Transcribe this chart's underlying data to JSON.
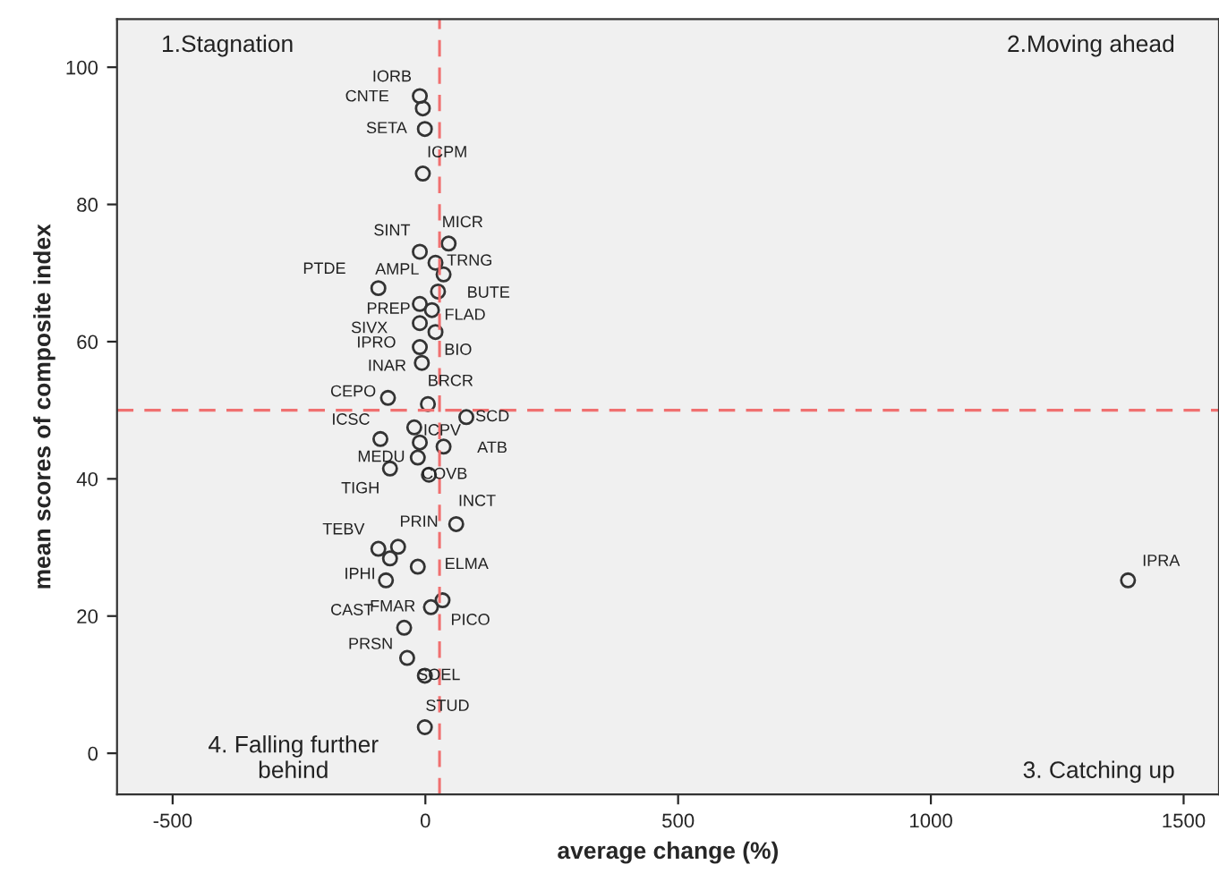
{
  "chart_data": {
    "type": "scatter",
    "xlabel": "average change (%)",
    "ylabel": "mean scores of composite index",
    "x": [
      -11,
      -5,
      -1,
      -5,
      46,
      -11,
      20,
      36,
      -93,
      25,
      -11,
      13,
      -11,
      20,
      -11,
      -7,
      -74,
      5,
      81,
      -22,
      -89,
      -11,
      36,
      -15,
      -70,
      7,
      61,
      -93,
      -54,
      -70,
      -15,
      -78,
      34,
      11,
      -42,
      -36,
      -1,
      -1,
      1390
    ],
    "values": [
      95.8,
      94.0,
      91.0,
      84.5,
      74.3,
      73.1,
      71.5,
      69.8,
      67.8,
      67.3,
      65.5,
      64.6,
      62.7,
      61.4,
      59.2,
      56.9,
      51.8,
      50.9,
      49.0,
      47.5,
      45.8,
      45.3,
      44.7,
      43.1,
      41.5,
      40.6,
      33.4,
      29.8,
      30.1,
      28.4,
      27.2,
      25.2,
      22.3,
      21.3,
      18.3,
      13.9,
      11.3,
      3.8,
      25.2
    ],
    "value_labels": [
      "IORB",
      "CNTE",
      "SETA",
      "ICPM",
      "MICR",
      "SINT",
      "AMPL",
      "TRNG",
      "PTDE",
      "BUTE",
      "PREP",
      "FLAD",
      "SIVX",
      "BIO",
      "IPRO",
      "INAR",
      "CEPO",
      "BRCR",
      "SCD",
      "ICPV",
      "ICSC",
      null,
      "ATB",
      "MEDU",
      "TIGH",
      "COVB",
      "INCT",
      "TEBV",
      "PRIN",
      null,
      "ELMA",
      "IPHI",
      "PICO",
      "FMAR",
      "CAST",
      "PRSN",
      "SOEL",
      "STUD",
      "IPRA"
    ],
    "color": "#333333",
    "marker": "circle",
    "xlim": [
      -610,
      1570
    ],
    "ylim": [
      -6,
      107
    ],
    "xticks": [
      -500,
      0,
      500,
      1000,
      1500
    ],
    "yticks": [
      0,
      20,
      40,
      60,
      80,
      100
    ],
    "ref_lines": [
      {
        "axis": "x",
        "value": 28,
        "color": "#f07070",
        "line_style": "dashed"
      },
      {
        "axis": "y",
        "value": 50,
        "color": "#f07070",
        "line_style": "dashed"
      }
    ],
    "annotations": [
      "1.Stagnation",
      "2.Moving ahead",
      "3. Catching up",
      "4. Falling further\nbehind"
    ],
    "grid": false,
    "legend": false
  }
}
